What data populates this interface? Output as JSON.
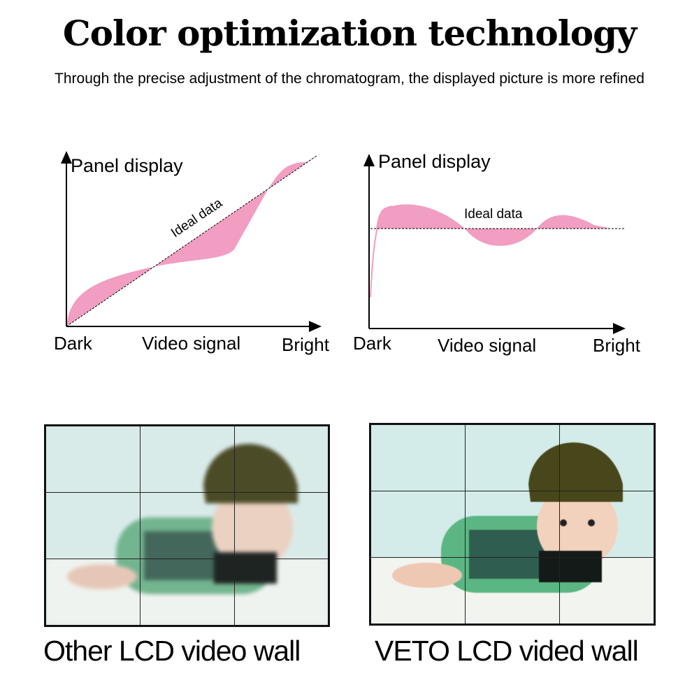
{
  "header": {
    "title": "Color optimization technology",
    "subtitle": "Through the precise adjustment of the chromatogram, the displayed picture is more refined"
  },
  "colors": {
    "deviation_fill": "#f19ec2",
    "axis": "#000000"
  },
  "charts": [
    {
      "y_label": "Panel display",
      "x_label": "Video signal",
      "x_start": "Dark",
      "x_end": "Bright",
      "reference_label": "Ideal data",
      "reference": "diagonal"
    },
    {
      "y_label": "Panel display",
      "x_label": "Video signal",
      "x_start": "Dark",
      "x_end": "Bright",
      "reference_label": "Ideal data",
      "reference": "horizontal"
    }
  ],
  "comparison": [
    {
      "caption": "Other LCD video wall",
      "quality": "blurred"
    },
    {
      "caption": "VETO LCD vided wall",
      "quality": "sharp"
    }
  ]
}
